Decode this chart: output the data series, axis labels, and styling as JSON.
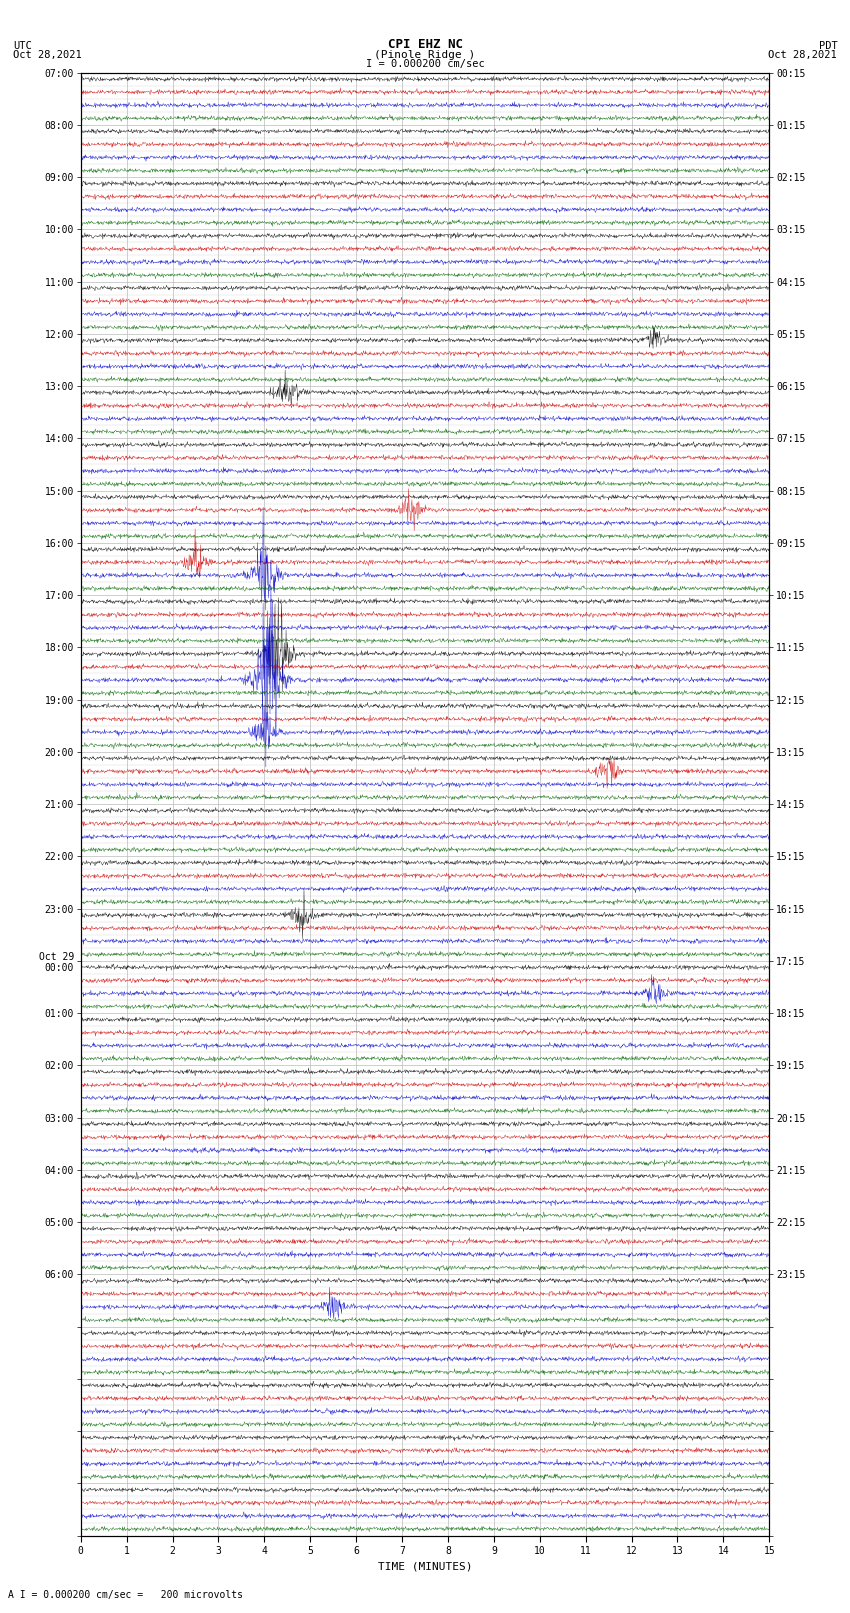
{
  "title_line1": "CPI EHZ NC",
  "title_line2": "(Pinole Ridge )",
  "scale_label": "I = 0.000200 cm/sec",
  "footer_label": "A I = 0.000200 cm/sec =   200 microvolts",
  "xlabel": "TIME (MINUTES)",
  "bg_color": "#ffffff",
  "trace_colors": [
    "#000000",
    "#cc0000",
    "#0000cc",
    "#006600"
  ],
  "grid_color": "#bbbbbb",
  "axis_color": "#000000",
  "fig_width": 8.5,
  "fig_height": 16.13,
  "dpi": 100,
  "n_groups": 28,
  "x_min": 0,
  "x_max": 15,
  "samples": 1500,
  "noise_amplitude": 0.18,
  "utc_labels": [
    "07:00",
    "08:00",
    "09:00",
    "10:00",
    "11:00",
    "12:00",
    "13:00",
    "14:00",
    "15:00",
    "16:00",
    "17:00",
    "18:00",
    "19:00",
    "20:00",
    "21:00",
    "22:00",
    "23:00",
    "Oct 29\n00:00",
    "01:00",
    "02:00",
    "03:00",
    "04:00",
    "05:00",
    "06:00",
    "",
    "",
    "",
    "",
    ""
  ],
  "pdt_labels": [
    "00:15",
    "01:15",
    "02:15",
    "03:15",
    "04:15",
    "05:15",
    "06:15",
    "07:15",
    "08:15",
    "09:15",
    "10:15",
    "11:15",
    "12:15",
    "13:15",
    "14:15",
    "15:15",
    "16:15",
    "17:15",
    "18:15",
    "19:15",
    "20:15",
    "21:15",
    "22:15",
    "23:15",
    "",
    "",
    "",
    "",
    ""
  ],
  "events": [
    {
      "group": 6,
      "color": 0,
      "time": 4.5,
      "amp": 2.5
    },
    {
      "group": 8,
      "color": 1,
      "time": 7.2,
      "amp": 2.0
    },
    {
      "group": 9,
      "color": 2,
      "time": 4.0,
      "amp": 5.0
    },
    {
      "group": 9,
      "color": 1,
      "time": 2.5,
      "amp": 2.5
    },
    {
      "group": 11,
      "color": 2,
      "time": 4.1,
      "amp": 10.0
    },
    {
      "group": 11,
      "color": 0,
      "time": 4.3,
      "amp": 7.0
    },
    {
      "group": 12,
      "color": 2,
      "time": 4.0,
      "amp": 3.0
    },
    {
      "group": 13,
      "color": 1,
      "time": 11.5,
      "amp": 2.5
    },
    {
      "group": 16,
      "color": 0,
      "time": 4.8,
      "amp": 2.0
    },
    {
      "group": 17,
      "color": 2,
      "time": 12.5,
      "amp": 2.0
    },
    {
      "group": 23,
      "color": 2,
      "time": 5.5,
      "amp": 2.0
    },
    {
      "group": 5,
      "color": 0,
      "time": 12.5,
      "amp": 1.5
    }
  ]
}
